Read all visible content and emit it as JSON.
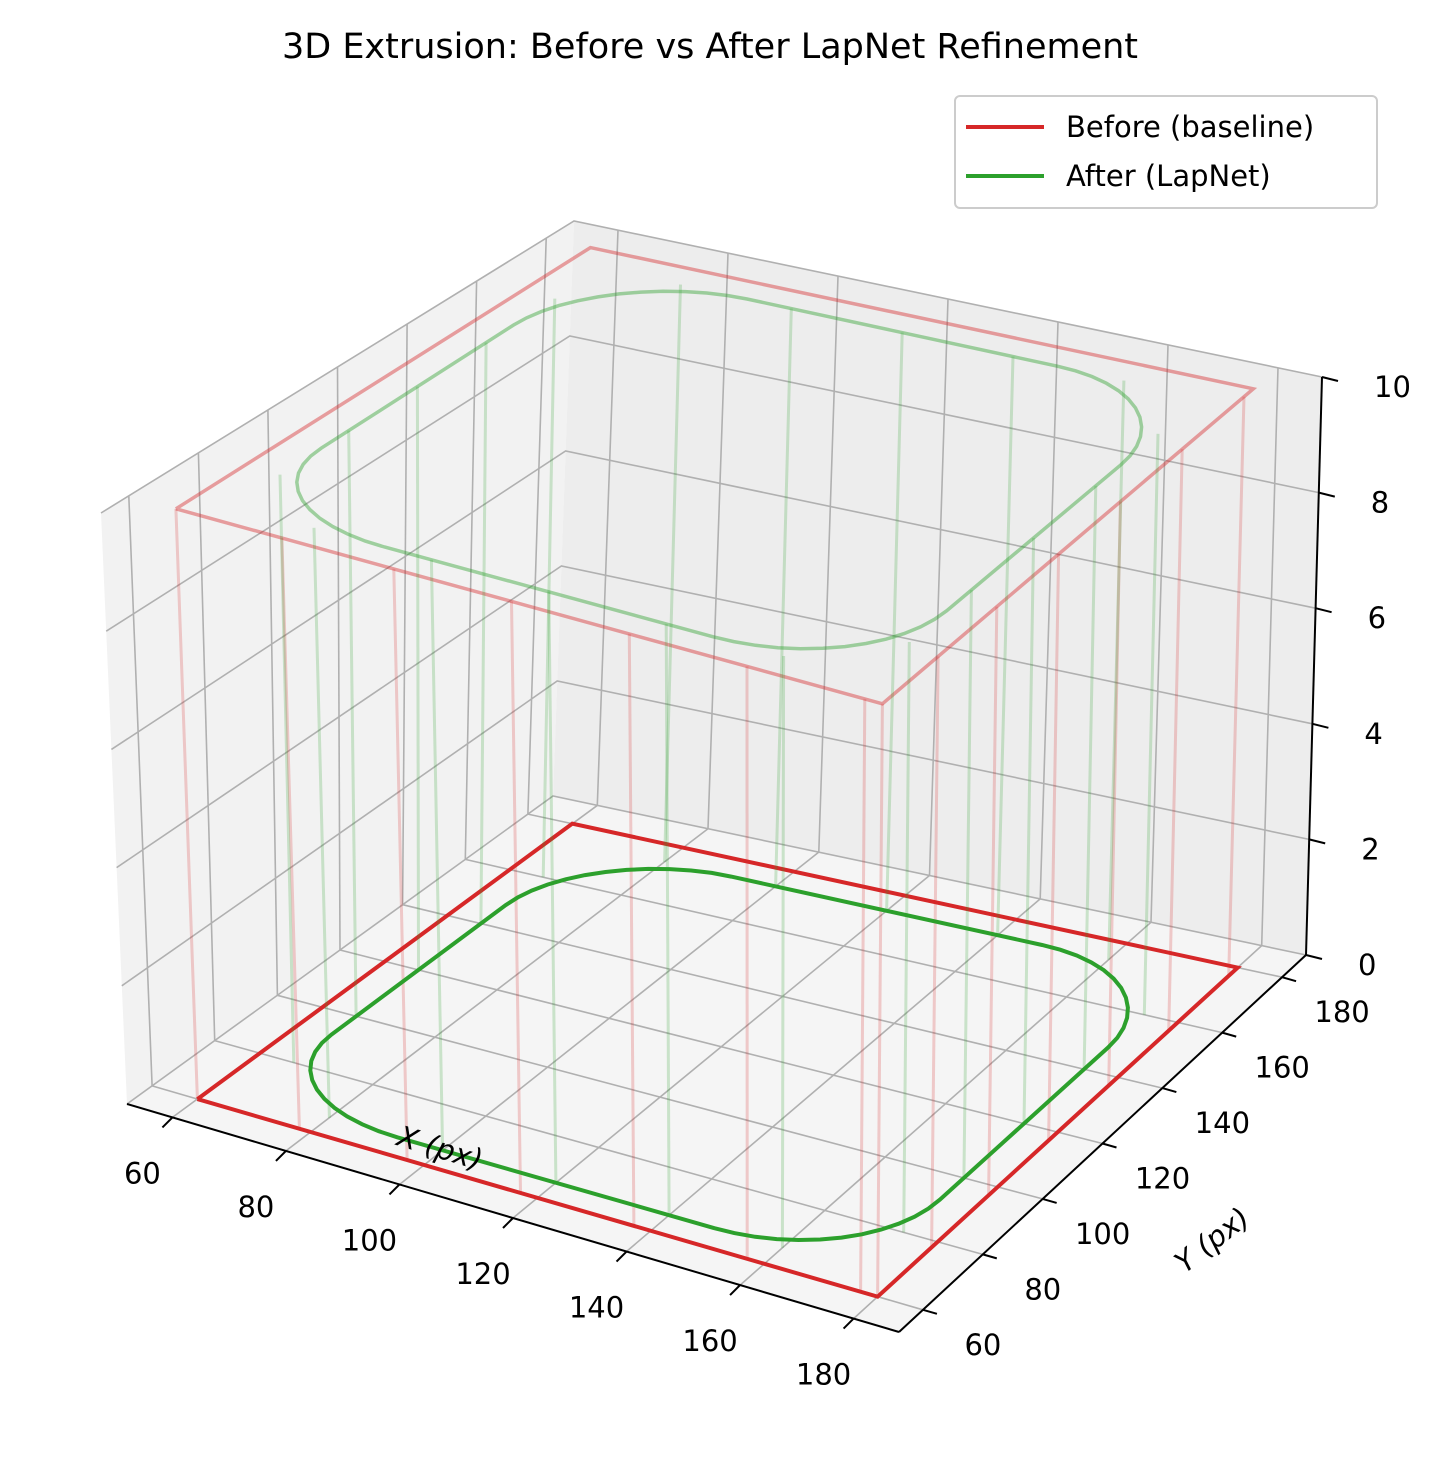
{
  "chart_data": {
    "type": "line",
    "projection": "3d",
    "title": "3D Extrusion: Before vs After LapNet Refinement",
    "xlabel": "X (px)",
    "ylabel": "Y (px)",
    "zlabel": "",
    "xlim": [
      52,
      188
    ],
    "ylim": [
      52,
      188
    ],
    "zlim": [
      0,
      10
    ],
    "xticks": [
      "60",
      "80",
      "100",
      "120",
      "140",
      "160",
      "180"
    ],
    "yticks": [
      "60",
      "80",
      "100",
      "120",
      "140",
      "160",
      "180"
    ],
    "zticks": [
      "0",
      "2",
      "4",
      "6",
      "8",
      "10"
    ],
    "grid": true,
    "legend_position": "top-right",
    "series": [
      {
        "name": "Before (baseline)",
        "color": "#d62728",
        "shape": "square",
        "x_range": [
          60,
          180
        ],
        "y_range": [
          60,
          180
        ],
        "z_levels": [
          0,
          10
        ],
        "vertical_edges_x": [
          60,
          78,
          97,
          117,
          137,
          157,
          177
        ],
        "vertical_edges_y": [
          60,
          78,
          97,
          117,
          137,
          157,
          177
        ]
      },
      {
        "name": "After (LapNet)",
        "color": "#2ca02c",
        "shape": "rounded-square",
        "x_range": [
          66,
          174
        ],
        "y_range": [
          66,
          174
        ],
        "corner_radius": 26,
        "z_levels": [
          0,
          10
        ],
        "vertical_edges_x": [
          80,
          100,
          120,
          140,
          160
        ],
        "vertical_edges_y": [
          80,
          100,
          120,
          140,
          160
        ]
      }
    ]
  }
}
